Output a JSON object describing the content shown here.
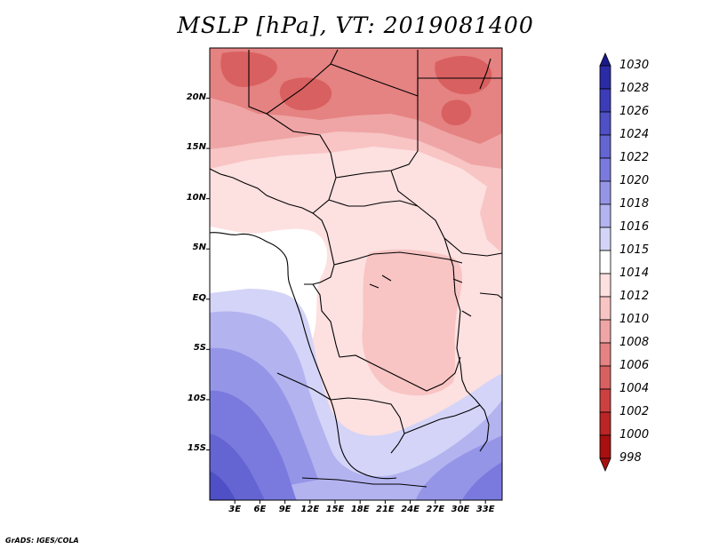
{
  "title": "MSLP [hPa], VT: 2019081400",
  "credit": "GrADS: IGES/COLA",
  "map": {
    "lon_range": [
      0,
      35
    ],
    "lat_range": [
      -20,
      25
    ],
    "lat_labels": [
      "20N",
      "15N",
      "10N",
      "5N",
      "EQ",
      "5S",
      "10S",
      "15S"
    ],
    "lat_values": [
      20,
      15,
      10,
      5,
      0,
      -5,
      -10,
      -15
    ],
    "lon_labels": [
      "3E",
      "6E",
      "9E",
      "12E",
      "15E",
      "18E",
      "21E",
      "24E",
      "27E",
      "30E",
      "33E"
    ],
    "lon_values": [
      3,
      6,
      9,
      12,
      15,
      18,
      21,
      24,
      27,
      30,
      33
    ],
    "ocean_color": "#ffffff",
    "coastline_color": "#000000"
  },
  "colorbar": {
    "levels": [
      "1030",
      "1028",
      "1026",
      "1024",
      "1022",
      "1020",
      "1018",
      "1016",
      "1015",
      "1014",
      "1012",
      "1010",
      "1008",
      "1006",
      "1004",
      "1002",
      "1000",
      "998"
    ],
    "colors": [
      "#1a1a8c",
      "#2b2ba6",
      "#3c3cb8",
      "#4f4fc6",
      "#6464d2",
      "#7a7ade",
      "#9595e8",
      "#b3b3f0",
      "#d4d4f8",
      "#ffffff",
      "#fde0e0",
      "#f8c4c4",
      "#efa5a5",
      "#e58282",
      "#d96060",
      "#cc4040",
      "#bb2525",
      "#a81010"
    ]
  }
}
